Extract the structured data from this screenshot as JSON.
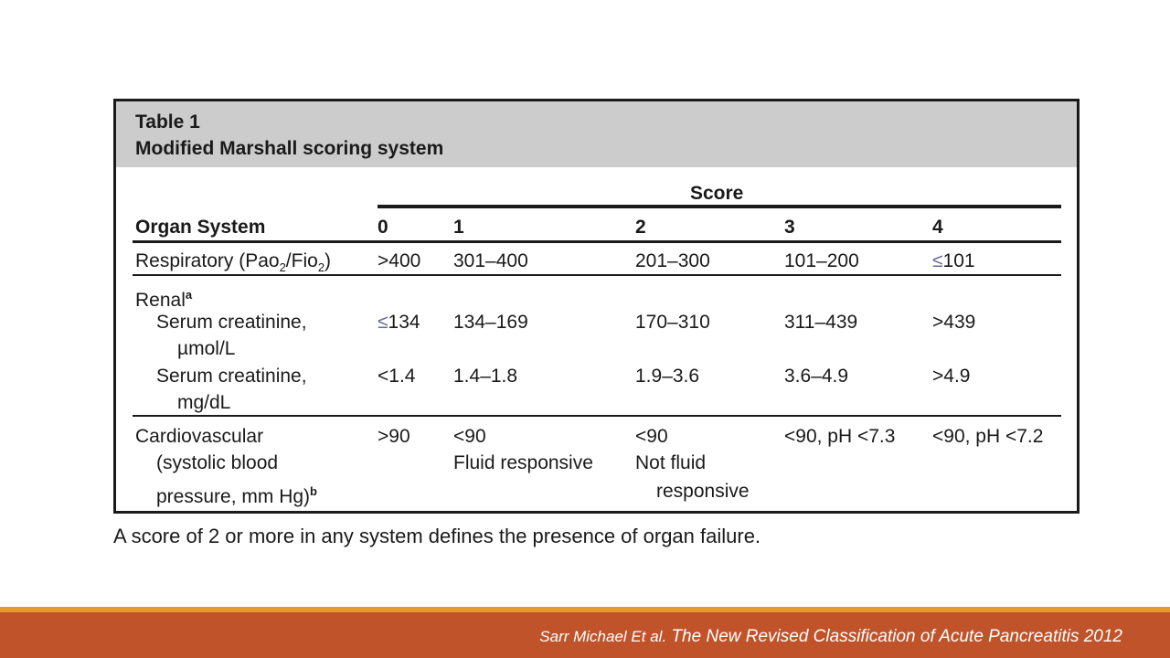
{
  "table": {
    "label": "Table 1",
    "title": "Modified Marshall scoring system",
    "score_header": "Score",
    "organ_header": "Organ System",
    "score_cols": [
      "0",
      "1",
      "2",
      "3",
      "4"
    ],
    "respiratory": {
      "label_pre": "Respiratory (Pao",
      "sub1": "2",
      "label_mid": "/Fio",
      "sub2": "2",
      "label_post": ")",
      "v0": ">400",
      "v1": "301–400",
      "v2": "201–300",
      "v3": "101–200",
      "v4_sym": "≤",
      "v4": "101"
    },
    "renal": {
      "label": "Renal",
      "sup": "a",
      "row1_label_a": "Serum creatinine,",
      "row1_label_b_sym": "µ",
      "row1_label_b": "mol/L",
      "row1_v0_sym": "≤",
      "row1_v0": "134",
      "row1_v1": "134–169",
      "row1_v2": "170–310",
      "row1_v3": "311–439",
      "row1_v4": ">439",
      "row2_label_a": "Serum creatinine,",
      "row2_label_b": "mg/dL",
      "row2_v0": "<1.4",
      "row2_v1": "1.4–1.8",
      "row2_v2": "1.9–3.6",
      "row2_v3": "3.6–4.9",
      "row2_v4": ">4.9"
    },
    "cardio": {
      "label_a": "Cardiovascular",
      "label_b": "(systolic blood",
      "label_c": "pressure, mm Hg)",
      "sup": "b",
      "v0": ">90",
      "v1_a": "<90",
      "v1_b": "Fluid responsive",
      "v2_a": "<90",
      "v2_b": "Not fluid",
      "v2_c": "responsive",
      "v3": "<90, pH <7.3",
      "v4": "<90, pH <7.2"
    }
  },
  "note": "A score of 2 or more in any system defines the presence of organ failure.",
  "citation": {
    "author": "Sarr Michael Et al.",
    "title": " The New Revised Classification of Acute Pancreatitis 2012"
  },
  "colors": {
    "header_bg": "#cccccc",
    "footer_bar": "#c0532a",
    "footer_accent": "#e59b2b"
  }
}
